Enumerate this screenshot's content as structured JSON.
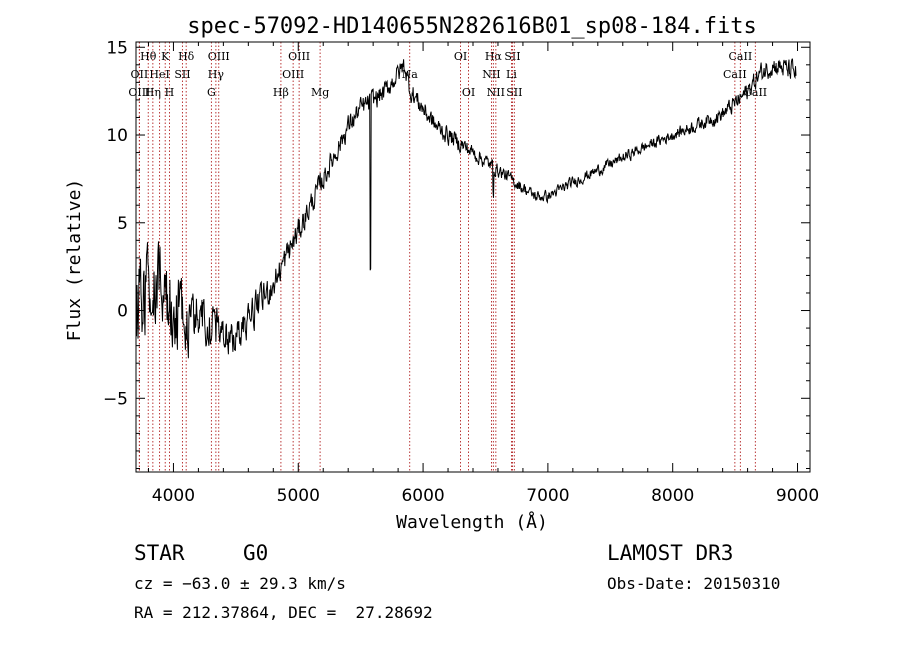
{
  "chart_data": {
    "type": "line",
    "title": "spec-57092-HD140655N282616B01_sp08-184.fits",
    "xlabel": "Wavelength (Å)",
    "ylabel": "Flux (relative)",
    "xlim": [
      3700,
      9100
    ],
    "ylim": [
      -9.2,
      15.3
    ],
    "x_ticks": [
      4000,
      5000,
      6000,
      7000,
      8000,
      9000
    ],
    "x_tick_labels": [
      "4000",
      "5000",
      "6000",
      "7000",
      "8000",
      "9000"
    ],
    "y_ticks": [
      -5,
      0,
      5,
      10,
      15
    ],
    "y_tick_labels": [
      "−5",
      "0",
      "5",
      "10",
      "15"
    ],
    "spectrum_envelope": {
      "x": [
        3700,
        3800,
        3900,
        4000,
        4100,
        4200,
        4300,
        4400,
        4500,
        4600,
        4700,
        4800,
        4900,
        5000,
        5100,
        5200,
        5300,
        5400,
        5500,
        5600,
        5700,
        5800,
        5850,
        5900,
        6000,
        6100,
        6200,
        6300,
        6400,
        6500,
        6600,
        6700,
        6800,
        6900,
        7000,
        7200,
        7400,
        7600,
        7800,
        8000,
        8200,
        8400,
        8500,
        8600,
        8700,
        8800,
        8900,
        9000
      ],
      "y": [
        0.5,
        1.5,
        1.0,
        0.0,
        -0.5,
        -0.5,
        -0.5,
        -1.5,
        -1.5,
        -0.5,
        0.5,
        1.5,
        3.0,
        4.5,
        6.0,
        7.5,
        9.0,
        10.5,
        11.5,
        12.0,
        12.5,
        13.5,
        14.0,
        12.5,
        11.5,
        10.5,
        10.0,
        9.5,
        9.0,
        8.5,
        8.0,
        7.5,
        7.0,
        6.5,
        6.5,
        7.3,
        8.0,
        8.7,
        9.4,
        10.0,
        10.6,
        11.2,
        11.8,
        12.5,
        13.5,
        14.0,
        13.8,
        13.5
      ]
    },
    "noise_amplitude": {
      "x": [
        3700,
        4000,
        4400,
        4800,
        5200,
        5600,
        6000,
        6600,
        7000,
        8000,
        8600,
        9000
      ],
      "y": [
        4.0,
        3.2,
        1.6,
        1.3,
        1.0,
        0.9,
        0.9,
        0.6,
        0.5,
        0.5,
        0.8,
        1.0
      ]
    },
    "absorption_features": [
      {
        "x": 5577,
        "depth": 9.5
      },
      {
        "x": 6563,
        "depth": 1.5
      }
    ],
    "spectral_lines": [
      {
        "label": "Hθ",
        "x": 3798,
        "row": 1
      },
      {
        "label": "OII",
        "x": 3727,
        "row": 2
      },
      {
        "label": "OIII",
        "x": 3727,
        "row": 3
      },
      {
        "label": "K",
        "x": 3934,
        "row": 1
      },
      {
        "label": "HeI",
        "x": 3889,
        "row": 2
      },
      {
        "label": "Hη",
        "x": 3835,
        "row": 3
      },
      {
        "label": "H",
        "x": 3968,
        "row": 3
      },
      {
        "label": "SII",
        "x": 4072,
        "row": 2
      },
      {
        "label": "Hδ",
        "x": 4102,
        "row": 1
      },
      {
        "label": "OIII",
        "x": 4363,
        "row": 1
      },
      {
        "label": "Hγ",
        "x": 4340,
        "row": 2
      },
      {
        "label": "G",
        "x": 4304,
        "row": 3
      },
      {
        "label": "Hβ",
        "x": 4861,
        "row": 3
      },
      {
        "label": "OIII",
        "x": 4959,
        "row": 2
      },
      {
        "label": "OIII",
        "x": 5007,
        "row": 1
      },
      {
        "label": "Mg",
        "x": 5175,
        "row": 3
      },
      {
        "label": "Na",
        "x": 5893,
        "row": 2
      },
      {
        "label": "OI",
        "x": 6300,
        "row": 1
      },
      {
        "label": "OI",
        "x": 6364,
        "row": 3
      },
      {
        "label": "Hα",
        "x": 6563,
        "row": 1
      },
      {
        "label": "NII",
        "x": 6548,
        "row": 2
      },
      {
        "label": "NII",
        "x": 6583,
        "row": 3
      },
      {
        "label": "SII",
        "x": 6716,
        "row": 1
      },
      {
        "label": "SII",
        "x": 6731,
        "row": 3
      },
      {
        "label": "Li",
        "x": 6708,
        "row": 2
      },
      {
        "label": "CaII",
        "x": 8542,
        "row": 1
      },
      {
        "label": "CaII",
        "x": 8498,
        "row": 2
      },
      {
        "label": "CaII",
        "x": 8662,
        "row": 3
      }
    ]
  },
  "info": {
    "object_class": "STAR",
    "subclass": "G0",
    "survey": "LAMOST DR3",
    "redshift": "cz = −63.0 ± 29.3 km/s",
    "obs_date": "Obs-Date: 20150310",
    "coords": "RA = 212.37864, DEC =  27.28692"
  }
}
